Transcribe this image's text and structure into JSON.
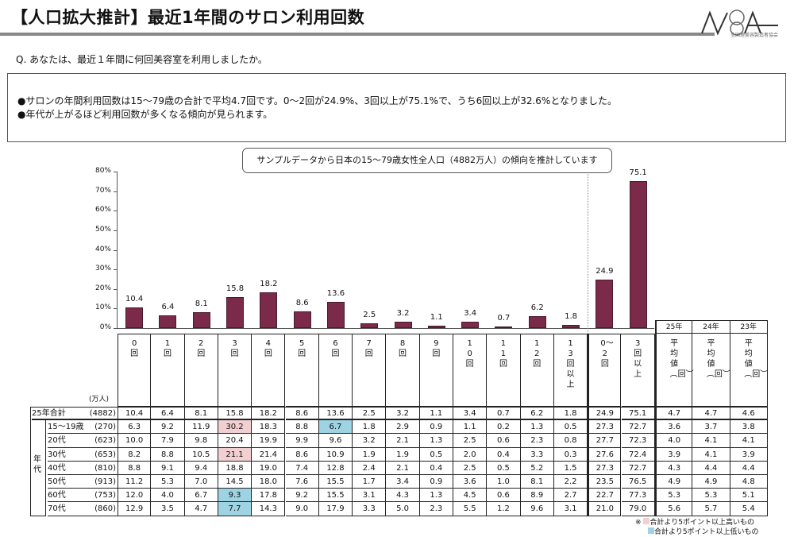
{
  "title": "【人口拡大推計】最近1年間のサロン利用回数",
  "logo": {
    "mark": "NBA",
    "org": "全国理美容製造者協会"
  },
  "question": "Q. あなたは、最近１年間に何回美容室を利用しましたか。",
  "summary": [
    "●サロンの年間利用回数は15〜79歳の合計で平均4.7回です。0〜2回が24.9%、3回以上が75.1%で、うち6回以上が32.6%となりました。",
    "●年代が上がるほど利用回数が多くなる傾向が見られます。"
  ],
  "callout": "サンプルデータから日本の15〜79歳女性全人口（4882万人）の傾向を推計しています",
  "colors": {
    "bar": "#7b2a4a",
    "high": "#f2d0d2",
    "low": "#9ed3e4"
  },
  "chart_data": {
    "type": "bar",
    "yticks": [
      "0%",
      "10%",
      "20%",
      "30%",
      "40%",
      "50%",
      "60%",
      "70%",
      "80%"
    ],
    "ylim": [
      0,
      80
    ],
    "categories": [
      "0回",
      "1回",
      "2回",
      "3回",
      "4回",
      "5回",
      "6回",
      "7回",
      "8回",
      "9回",
      "10回",
      "11回",
      "12回",
      "13回以上",
      "0〜2回",
      "3回以上"
    ],
    "values": [
      10.4,
      6.4,
      8.1,
      15.8,
      18.2,
      8.6,
      13.6,
      2.5,
      3.2,
      1.1,
      3.4,
      0.7,
      6.2,
      1.8,
      24.9,
      75.1
    ],
    "value_labels": [
      "10.4",
      "6.4",
      "8.1",
      "15.8",
      "18.2",
      "8.6",
      "13.6",
      "2.5",
      "3.2",
      "1.1",
      "3.4",
      "0.7",
      "6.2",
      "1.8",
      "24.9",
      "75.1"
    ]
  },
  "table": {
    "unit": "(万人)",
    "group_label": "年代",
    "avg_headers": [
      {
        "year": "25年",
        "label": "平均値︵回︶"
      },
      {
        "year": "24年",
        "label": "平均値︵回︶"
      },
      {
        "year": "23年",
        "label": "平均値︵回︶"
      }
    ],
    "rows": [
      {
        "label": "25年合計",
        "n": "(4882)",
        "values": [
          "10.4",
          "6.4",
          "8.1",
          "15.8",
          "18.2",
          "8.6",
          "13.6",
          "2.5",
          "3.2",
          "1.1",
          "3.4",
          "0.7",
          "6.2",
          "1.8",
          "24.9",
          "75.1",
          "4.7",
          "4.7",
          "4.6"
        ]
      },
      {
        "label": "15〜19歳",
        "n": "(270)",
        "values": [
          "6.3",
          "9.2",
          "11.9",
          "30.2",
          "18.3",
          "8.8",
          "6.7",
          "1.8",
          "2.9",
          "0.9",
          "1.1",
          "0.2",
          "1.3",
          "0.5",
          "27.3",
          "72.7",
          "3.6",
          "3.7",
          "3.8"
        ]
      },
      {
        "label": "20代",
        "n": "(623)",
        "values": [
          "10.0",
          "7.9",
          "9.8",
          "20.4",
          "19.9",
          "9.9",
          "9.6",
          "3.2",
          "2.1",
          "1.3",
          "2.5",
          "0.6",
          "2.3",
          "0.8",
          "27.7",
          "72.3",
          "4.0",
          "4.1",
          "4.1"
        ]
      },
      {
        "label": "30代",
        "n": "(653)",
        "values": [
          "8.2",
          "8.8",
          "10.5",
          "21.1",
          "21.4",
          "8.6",
          "10.9",
          "1.9",
          "1.9",
          "0.5",
          "2.0",
          "0.4",
          "3.3",
          "0.3",
          "27.6",
          "72.4",
          "3.9",
          "4.1",
          "3.9"
        ]
      },
      {
        "label": "40代",
        "n": "(810)",
        "values": [
          "8.8",
          "9.1",
          "9.4",
          "18.8",
          "19.0",
          "7.4",
          "12.8",
          "2.4",
          "2.1",
          "0.4",
          "2.5",
          "0.5",
          "5.2",
          "1.5",
          "27.3",
          "72.7",
          "4.3",
          "4.4",
          "4.4"
        ]
      },
      {
        "label": "50代",
        "n": "(913)",
        "values": [
          "11.2",
          "5.3",
          "7.0",
          "14.5",
          "18.0",
          "7.6",
          "15.5",
          "1.7",
          "3.4",
          "0.9",
          "3.6",
          "1.0",
          "8.1",
          "2.2",
          "23.5",
          "76.5",
          "4.9",
          "4.9",
          "4.8"
        ]
      },
      {
        "label": "60代",
        "n": "(753)",
        "values": [
          "12.0",
          "4.0",
          "6.7",
          "9.3",
          "17.8",
          "9.2",
          "15.5",
          "3.1",
          "4.3",
          "1.3",
          "4.5",
          "0.6",
          "8.9",
          "2.7",
          "22.7",
          "77.3",
          "5.3",
          "5.3",
          "5.1"
        ]
      },
      {
        "label": "70代",
        "n": "(860)",
        "values": [
          "12.9",
          "3.5",
          "4.7",
          "7.7",
          "14.3",
          "9.0",
          "17.9",
          "3.3",
          "5.0",
          "2.3",
          "5.5",
          "1.2",
          "9.6",
          "3.1",
          "21.0",
          "79.0",
          "5.6",
          "5.7",
          "5.4"
        ]
      }
    ],
    "highlights": [
      {
        "row": 1,
        "col": 3,
        "type": "high"
      },
      {
        "row": 3,
        "col": 3,
        "type": "high"
      },
      {
        "row": 1,
        "col": 6,
        "type": "low"
      },
      {
        "row": 6,
        "col": 3,
        "type": "low"
      },
      {
        "row": 7,
        "col": 3,
        "type": "low"
      }
    ]
  },
  "legend": {
    "mark": "※",
    "high": "合計より5ポイント以上高いもの",
    "low": "合計より5ポイント以上低いもの"
  }
}
